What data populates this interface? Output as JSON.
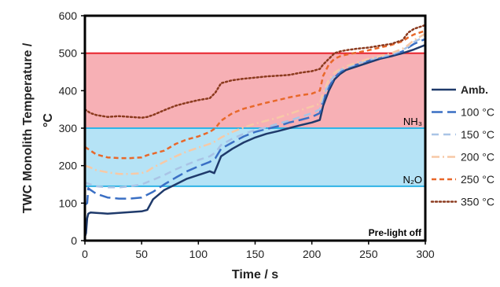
{
  "chart_data": {
    "type": "line",
    "title": "",
    "xlabel": "Time / s",
    "ylabel_line1": "TWC Monolith Temperature /",
    "ylabel_line2": "°C",
    "xlim": [
      0,
      300
    ],
    "ylim": [
      0,
      600
    ],
    "xticks": [
      0,
      50,
      100,
      150,
      200,
      250,
      300
    ],
    "yticks": [
      0,
      100,
      200,
      300,
      400,
      500,
      600
    ],
    "grid": false,
    "legend_position": "right",
    "regions": [
      {
        "label": "NH₃",
        "y0": 300,
        "y1": 500,
        "fill": "#f7b0b5",
        "stroke": "#e8202a"
      },
      {
        "label": "N₂O",
        "y0": 145,
        "y1": 300,
        "fill": "#b5e3f6",
        "stroke": "#2fb4e6"
      }
    ],
    "annotations": [
      {
        "text": "Pre-light off",
        "x": 300,
        "y": 0
      }
    ],
    "series": [
      {
        "name": "Amb.",
        "color": "#1f3a6b",
        "dash": "solid",
        "x": [
          0,
          1,
          2,
          3,
          5,
          10,
          20,
          30,
          40,
          50,
          55,
          60,
          70,
          80,
          90,
          100,
          110,
          114,
          116,
          120,
          130,
          140,
          150,
          160,
          170,
          180,
          190,
          200,
          207,
          210,
          215,
          220,
          225,
          230,
          240,
          250,
          260,
          270,
          280,
          285,
          290,
          300
        ],
        "y": [
          10,
          20,
          60,
          72,
          75,
          74,
          72,
          74,
          76,
          78,
          82,
          110,
          135,
          150,
          165,
          175,
          185,
          180,
          195,
          225,
          245,
          262,
          275,
          285,
          292,
          300,
          308,
          315,
          322,
          360,
          400,
          430,
          445,
          455,
          465,
          475,
          485,
          492,
          500,
          505,
          510,
          522
        ]
      },
      {
        "name": "100 °C",
        "color": "#3a6fc4",
        "dash": "long",
        "x": [
          0,
          2,
          3,
          5,
          10,
          20,
          30,
          40,
          50,
          60,
          70,
          80,
          90,
          100,
          110,
          115,
          120,
          130,
          140,
          150,
          160,
          170,
          180,
          190,
          200,
          207,
          210,
          215,
          220,
          225,
          230,
          240,
          250,
          260,
          270,
          280,
          285,
          290,
          300
        ],
        "y": [
          95,
          100,
          140,
          135,
          125,
          115,
          112,
          112,
          115,
          130,
          150,
          168,
          185,
          198,
          210,
          220,
          245,
          262,
          278,
          290,
          298,
          305,
          315,
          322,
          330,
          340,
          375,
          410,
          435,
          450,
          460,
          470,
          480,
          488,
          495,
          505,
          515,
          525,
          538
        ]
      },
      {
        "name": "150 °C",
        "color": "#a9c4e6",
        "dash": "medium",
        "x": [
          0,
          5,
          10,
          20,
          30,
          40,
          50,
          60,
          70,
          80,
          90,
          100,
          110,
          115,
          120,
          130,
          140,
          150,
          160,
          170,
          180,
          190,
          200,
          207,
          210,
          215,
          220,
          225,
          230,
          240,
          250,
          260,
          270,
          280,
          285,
          290,
          300
        ],
        "y": [
          155,
          150,
          145,
          142,
          142,
          145,
          150,
          162,
          175,
          190,
          203,
          215,
          225,
          235,
          255,
          272,
          285,
          295,
          302,
          312,
          320,
          330,
          340,
          350,
          385,
          420,
          440,
          455,
          462,
          472,
          482,
          490,
          497,
          508,
          518,
          530,
          545
        ]
      },
      {
        "name": "200 °C",
        "color": "#f7c9a6",
        "dash": "dashdot",
        "x": [
          0,
          5,
          10,
          20,
          30,
          40,
          50,
          55,
          60,
          70,
          80,
          90,
          100,
          110,
          115,
          120,
          130,
          140,
          150,
          160,
          170,
          180,
          190,
          200,
          207,
          210,
          215,
          220,
          225,
          230,
          240,
          250,
          260,
          270,
          280,
          285,
          290,
          300
        ],
        "y": [
          200,
          195,
          188,
          182,
          178,
          178,
          180,
          185,
          195,
          210,
          225,
          238,
          248,
          258,
          265,
          275,
          290,
          302,
          312,
          320,
          328,
          338,
          348,
          358,
          365,
          395,
          430,
          448,
          458,
          465,
          475,
          485,
          492,
          500,
          512,
          522,
          535,
          552
        ]
      },
      {
        "name": "250 °C",
        "color": "#e8682a",
        "dash": "short",
        "x": [
          0,
          5,
          10,
          20,
          30,
          40,
          50,
          55,
          60,
          70,
          80,
          90,
          100,
          110,
          115,
          120,
          130,
          140,
          150,
          160,
          170,
          180,
          190,
          200,
          207,
          210,
          215,
          220,
          225,
          230,
          240,
          250,
          260,
          270,
          280,
          285,
          290,
          300
        ],
        "y": [
          250,
          240,
          230,
          222,
          220,
          220,
          222,
          228,
          232,
          240,
          258,
          270,
          278,
          290,
          300,
          320,
          340,
          352,
          360,
          368,
          375,
          382,
          388,
          392,
          400,
          440,
          470,
          485,
          492,
          496,
          502,
          508,
          515,
          522,
          532,
          542,
          550,
          560
        ]
      },
      {
        "name": "350 °C",
        "color": "#8b3a1e",
        "dash": "dot",
        "x": [
          0,
          5,
          10,
          20,
          30,
          40,
          50,
          55,
          60,
          70,
          80,
          90,
          100,
          110,
          115,
          120,
          130,
          140,
          150,
          160,
          170,
          180,
          190,
          200,
          207,
          210,
          215,
          220,
          225,
          230,
          240,
          250,
          260,
          270,
          280,
          285,
          290,
          300
        ],
        "y": [
          350,
          340,
          335,
          330,
          332,
          330,
          328,
          330,
          335,
          348,
          360,
          368,
          375,
          380,
          395,
          420,
          428,
          432,
          435,
          438,
          440,
          442,
          448,
          452,
          458,
          470,
          485,
          500,
          505,
          508,
          512,
          515,
          520,
          525,
          535,
          555,
          565,
          575
        ]
      }
    ]
  }
}
